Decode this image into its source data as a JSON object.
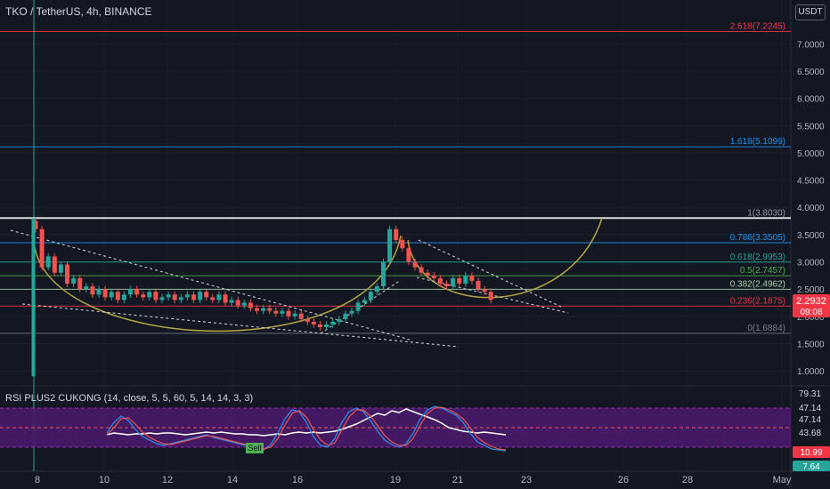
{
  "header": {
    "title": "TKO / TetherUS, 4h, BINANCE",
    "currency_badge": "USDT"
  },
  "indicator": {
    "title": "RSI PLUS2 CUKONG (14, close, 5, 5, 60, 5, 14, 14, 3, 3)",
    "axis_labels": [
      "79.31",
      "47.14",
      "47.14",
      "43.68"
    ],
    "badge_red": "10.99",
    "badge_teal": "7.64",
    "sell_label": "Sell"
  },
  "price_badge": {
    "price": "2.2932",
    "countdown": "09:08",
    "color": "#f23645"
  },
  "colors": {
    "background": "#131722",
    "up": "#26a69a",
    "down": "#ef5350",
    "cup_curve": "#b5a642",
    "rsi_band": "#4a1a6b"
  },
  "chart_data": {
    "type": "candlestick",
    "symbol": "TKO / TetherUS",
    "interval": "4h",
    "exchange": "BINANCE",
    "y_ticks": [
      "7.0000",
      "6.5000",
      "6.0000",
      "5.5000",
      "5.0000",
      "4.5000",
      "4.0000",
      "3.5000",
      "3.0000",
      "2.5000",
      "2.0000",
      "1.5000",
      "1.0000"
    ],
    "x_ticks": [
      "8",
      "10",
      "12",
      "14",
      "16",
      "19",
      "21",
      "23",
      "26",
      "28",
      "May"
    ],
    "fib_levels": [
      {
        "label": "2.618(7.2245)",
        "value": 7.2245,
        "color": "#f23645"
      },
      {
        "label": "1.618(5.1099)",
        "value": 5.1099,
        "color": "#2196f3"
      },
      {
        "label": "1(3.8030)",
        "value": 3.803,
        "color": "#ffffff"
      },
      {
        "label": "0.786(3.3505)",
        "value": 3.3505,
        "color": "#2196f3"
      },
      {
        "label": "0.618(2.9953)",
        "value": 2.9953,
        "color": "#26a69a"
      },
      {
        "label": "0.5(2.7457)",
        "value": 2.7457,
        "color": "#4caf50"
      },
      {
        "label": "0.382(2.4962)",
        "value": 2.4962,
        "color": "#a5d6a7"
      },
      {
        "label": "0.236(2.1875)",
        "value": 2.1875,
        "color": "#f23645"
      },
      {
        "label": "0(1.6884)",
        "value": 1.6884,
        "color": "#787b86"
      }
    ],
    "closes": [
      3.6,
      2.9,
      3.1,
      2.8,
      2.95,
      2.6,
      2.7,
      2.5,
      2.55,
      2.4,
      2.5,
      2.35,
      2.45,
      2.3,
      2.4,
      2.5,
      2.4,
      2.35,
      2.45,
      2.3,
      2.35,
      2.4,
      2.3,
      2.35,
      2.4,
      2.3,
      2.45,
      2.35,
      2.3,
      2.4,
      2.25,
      2.3,
      2.2,
      2.25,
      2.15,
      2.1,
      2.15,
      2.1,
      2.05,
      2.1,
      2.0,
      2.05,
      1.95,
      1.9,
      1.85,
      1.8,
      1.85,
      1.9,
      1.95,
      2.05,
      2.1,
      2.25,
      2.3,
      2.45,
      2.55,
      3.0,
      3.6,
      3.4,
      3.25,
      3.0,
      2.9,
      2.8,
      2.75,
      2.7,
      2.6,
      2.55,
      2.7,
      2.6,
      2.75,
      2.65,
      2.5,
      2.45,
      2.3
    ],
    "rsi_white": [
      44,
      46,
      45,
      44,
      45,
      45,
      46,
      45,
      46,
      46,
      45,
      44,
      45,
      46,
      47,
      46,
      47,
      46,
      45,
      45,
      44,
      44,
      43,
      44,
      45,
      44,
      46,
      47,
      46,
      47,
      46,
      47,
      48,
      50,
      53,
      56,
      60,
      64,
      68,
      66,
      71,
      69,
      73,
      70,
      67,
      64,
      61,
      57,
      52,
      50,
      48,
      47,
      46,
      47,
      46,
      45,
      44
    ],
    "rsi_blue": [
      46,
      58,
      65,
      60,
      50,
      42,
      38,
      34,
      32,
      34,
      36,
      38,
      40,
      42,
      44,
      41,
      39,
      37,
      35,
      33,
      31,
      28,
      27,
      33,
      46,
      62,
      72,
      70,
      58,
      42,
      32,
      30,
      40,
      58,
      70,
      74,
      70,
      60,
      48,
      38,
      33,
      30,
      34,
      46,
      62,
      72,
      76,
      74,
      70,
      66,
      58,
      46,
      36,
      32,
      28,
      27,
      26
    ],
    "rsi_red": [
      44,
      52,
      62,
      63,
      56,
      47,
      41,
      37,
      34,
      33,
      35,
      37,
      39,
      41,
      43,
      42,
      40,
      38,
      36,
      34,
      32,
      30,
      28,
      30,
      40,
      55,
      68,
      71,
      64,
      50,
      38,
      32,
      35,
      50,
      64,
      72,
      72,
      65,
      54,
      43,
      36,
      32,
      32,
      40,
      55,
      68,
      74,
      75,
      72,
      68,
      62,
      52,
      41,
      35,
      31,
      28,
      27
    ]
  }
}
